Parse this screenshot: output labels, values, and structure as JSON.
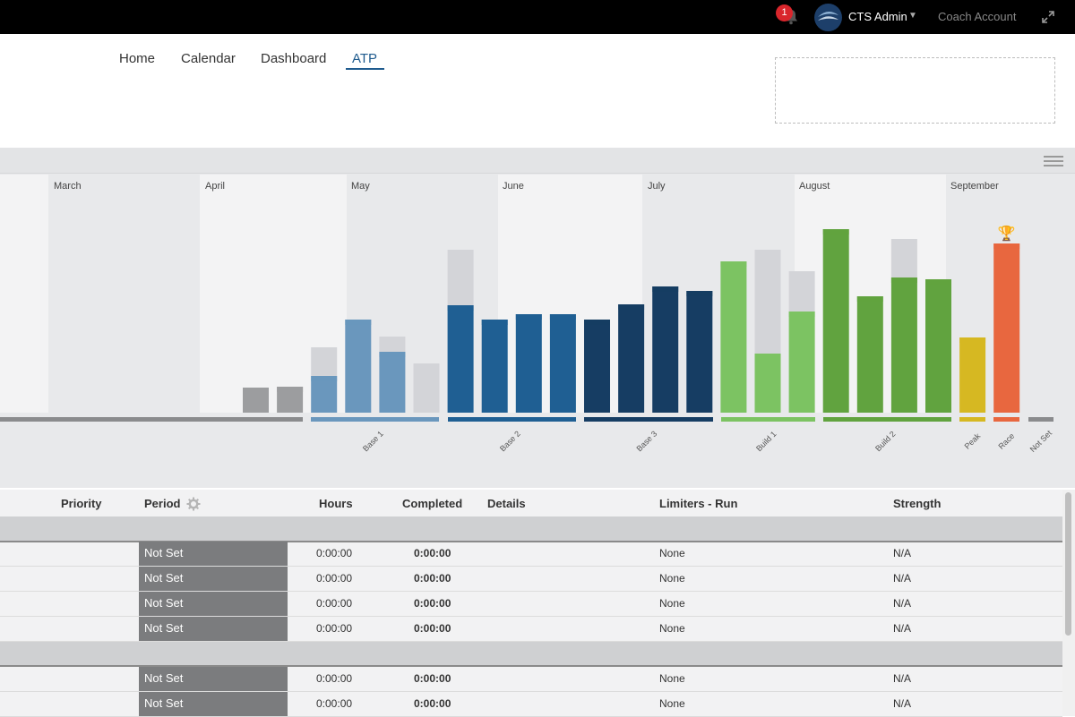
{
  "header": {
    "notification_count": "1",
    "user_name": "CTS Admin",
    "coach_account": "Coach Account"
  },
  "nav": {
    "items": [
      "Home",
      "Calendar",
      "Dashboard",
      "ATP"
    ],
    "active": "ATP"
  },
  "colors": {
    "base1": "#6a97bd",
    "base2": "#1f5f93",
    "base3": "#163d63",
    "build1": "#7cc362",
    "build2": "#61a33f",
    "peak": "#d6b822",
    "race": "#e8673f",
    "prep": "#9c9d9f",
    "planned": "#d3d4d8"
  },
  "chart_data": {
    "type": "bar",
    "months": [
      "March",
      "April",
      "May",
      "June",
      "July",
      "August",
      "September"
    ],
    "periods": [
      "Base 1",
      "Base 2",
      "Base 3",
      "Build 1",
      "Build 2",
      "Peak",
      "Race",
      "Not Set"
    ],
    "race_marker": "trophy-icon",
    "weeks": [
      {
        "period": "prep",
        "total": 28,
        "completed": 28
      },
      {
        "period": "prep",
        "total": 29,
        "completed": 29
      },
      {
        "period": "Base 1",
        "total": 73,
        "completed": 41
      },
      {
        "period": "Base 1",
        "total": 104,
        "completed": 104
      },
      {
        "period": "Base 1",
        "total": 85,
        "completed": 68
      },
      {
        "period": "Base 1",
        "total": 55,
        "completed": 0
      },
      {
        "period": "Base 2",
        "total": 182,
        "completed": 120
      },
      {
        "period": "Base 2",
        "total": 104,
        "completed": 104
      },
      {
        "period": "Base 2",
        "total": 110,
        "completed": 110
      },
      {
        "period": "Base 2",
        "total": 110,
        "completed": 110
      },
      {
        "period": "Base 3",
        "total": 104,
        "completed": 104
      },
      {
        "period": "Base 3",
        "total": 121,
        "completed": 121
      },
      {
        "period": "Base 3",
        "total": 141,
        "completed": 141
      },
      {
        "period": "Base 3",
        "total": 136,
        "completed": 136
      },
      {
        "period": "Build 1",
        "total": 169,
        "completed": 169
      },
      {
        "period": "Build 1",
        "total": 182,
        "completed": 66
      },
      {
        "period": "Build 1",
        "total": 158,
        "completed": 113
      },
      {
        "period": "Build 2",
        "total": 205,
        "completed": 205
      },
      {
        "period": "Build 2",
        "total": 130,
        "completed": 130
      },
      {
        "period": "Build 2",
        "total": 194,
        "completed": 151
      },
      {
        "period": "Build 2",
        "total": 149,
        "completed": 149
      },
      {
        "period": "Peak",
        "total": 84,
        "completed": 84
      },
      {
        "period": "Race",
        "total": 189,
        "completed": 189
      }
    ]
  },
  "table": {
    "headers": {
      "priority": "Priority",
      "period": "Period",
      "hours": "Hours",
      "completed": "Completed",
      "details": "Details",
      "limiters": "Limiters - Run",
      "strength": "Strength"
    },
    "rows": [
      {
        "period": "Not Set",
        "hours": "0:00:00",
        "completed": "0:00:00",
        "limiters": "None",
        "strength": "N/A"
      },
      {
        "period": "Not Set",
        "hours": "0:00:00",
        "completed": "0:00:00",
        "limiters": "None",
        "strength": "N/A"
      },
      {
        "period": "Not Set",
        "hours": "0:00:00",
        "completed": "0:00:00",
        "limiters": "None",
        "strength": "N/A"
      },
      {
        "period": "Not Set",
        "hours": "0:00:00",
        "completed": "0:00:00",
        "limiters": "None",
        "strength": "N/A"
      },
      {
        "period": "Not Set",
        "hours": "0:00:00",
        "completed": "0:00:00",
        "limiters": "None",
        "strength": "N/A"
      },
      {
        "period": "Not Set",
        "hours": "0:00:00",
        "completed": "0:00:00",
        "limiters": "None",
        "strength": "N/A"
      }
    ]
  }
}
